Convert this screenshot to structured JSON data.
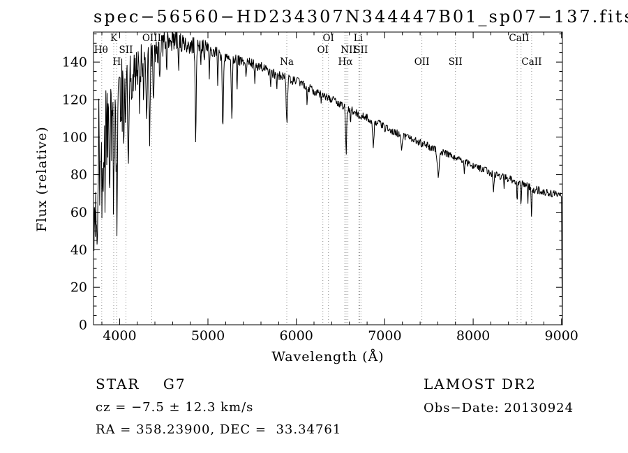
{
  "footer": {
    "class_line": "STAR    G7",
    "survey": "LAMOST DR2",
    "cz_line": "cz = −7.5 ± 12.3 km/s",
    "obs_line": "Obs−Date: 20130924",
    "radec_line": "RA = 358.23900, DEC =  33.34761"
  },
  "chart_data": {
    "type": "line",
    "title": "spec−56560−HD234307N344447B01_sp07−137.fits",
    "xlabel": "Wavelength (Å)",
    "ylabel": "Flux (relative)",
    "xlim": [
      3705,
      9010
    ],
    "ylim": [
      0,
      156
    ],
    "x_ticks": [
      4000,
      5000,
      6000,
      7000,
      8000,
      9000
    ],
    "y_ticks": [
      0,
      20,
      40,
      60,
      80,
      100,
      120,
      140
    ],
    "x_minor_step": 200,
    "y_minor_step": 5,
    "grid": false,
    "line_color": "#000000",
    "marker_line_color": "#8f8f8f",
    "line_markers": [
      3798,
      3934,
      3969,
      4072,
      4363,
      5892,
      6300,
      6363,
      6548,
      6563,
      6583,
      6707,
      6717,
      6731,
      7420,
      7800,
      8498,
      8542,
      8662
    ],
    "line_labels": [
      {
        "wavelength": 3934,
        "label": "K",
        "row": 0
      },
      {
        "wavelength": 4363,
        "label": "OIII",
        "row": 0
      },
      {
        "wavelength": 6363,
        "label": "OI",
        "row": 0
      },
      {
        "wavelength": 6700,
        "label": "Li",
        "row": 0
      },
      {
        "wavelength": 8520,
        "label": "CaII",
        "row": 0
      },
      {
        "wavelength": 3790,
        "label": "Hθ",
        "row": 1
      },
      {
        "wavelength": 4072,
        "label": "SII",
        "row": 1
      },
      {
        "wavelength": 6300,
        "label": "OI",
        "row": 1
      },
      {
        "wavelength": 6590,
        "label": "NII",
        "row": 1
      },
      {
        "wavelength": 6730,
        "label": "SII",
        "row": 1
      },
      {
        "wavelength": 3969,
        "label": "H",
        "row": 2
      },
      {
        "wavelength": 5892,
        "label": "Na",
        "row": 2
      },
      {
        "wavelength": 6555,
        "label": "Hα",
        "row": 2
      },
      {
        "wavelength": 7420,
        "label": "OII",
        "row": 2
      },
      {
        "wavelength": 7800,
        "label": "SII",
        "row": 2
      },
      {
        "wavelength": 8662,
        "label": "CaII",
        "row": 2
      }
    ],
    "continuum": [
      [
        3705,
        58
      ],
      [
        3720,
        72
      ],
      [
        3740,
        82
      ],
      [
        3760,
        88
      ],
      [
        3790,
        95
      ],
      [
        3820,
        100
      ],
      [
        3860,
        106
      ],
      [
        3900,
        111
      ],
      [
        3950,
        112
      ],
      [
        4000,
        120
      ],
      [
        4060,
        126
      ],
      [
        4120,
        130
      ],
      [
        4180,
        134
      ],
      [
        4240,
        138
      ],
      [
        4300,
        141
      ],
      [
        4360,
        144
      ],
      [
        4420,
        147
      ],
      [
        4480,
        149
      ],
      [
        4540,
        151
      ],
      [
        4600,
        152
      ],
      [
        4660,
        151
      ],
      [
        4720,
        150
      ],
      [
        4780,
        149
      ],
      [
        4840,
        149
      ],
      [
        4900,
        150
      ],
      [
        4960,
        148
      ],
      [
        5020,
        147
      ],
      [
        5080,
        146
      ],
      [
        5140,
        144
      ],
      [
        5200,
        143
      ],
      [
        5260,
        142
      ],
      [
        5320,
        141
      ],
      [
        5380,
        141
      ],
      [
        5440,
        140
      ],
      [
        5500,
        139
      ],
      [
        5560,
        138
      ],
      [
        5620,
        137
      ],
      [
        5680,
        135
      ],
      [
        5740,
        134
      ],
      [
        5800,
        133
      ],
      [
        5860,
        132
      ],
      [
        5920,
        131
      ],
      [
        5980,
        130
      ],
      [
        6040,
        129
      ],
      [
        6100,
        127
      ],
      [
        6160,
        126
      ],
      [
        6220,
        124
      ],
      [
        6280,
        123
      ],
      [
        6340,
        121
      ],
      [
        6400,
        120
      ],
      [
        6460,
        118
      ],
      [
        6520,
        117
      ],
      [
        6580,
        115
      ],
      [
        6640,
        114
      ],
      [
        6700,
        112
      ],
      [
        6760,
        111
      ],
      [
        6820,
        110
      ],
      [
        6880,
        108
      ],
      [
        6940,
        107
      ],
      [
        7000,
        105
      ],
      [
        7100,
        103
      ],
      [
        7200,
        101
      ],
      [
        7300,
        99
      ],
      [
        7400,
        97
      ],
      [
        7500,
        95
      ],
      [
        7600,
        93
      ],
      [
        7700,
        91
      ],
      [
        7800,
        89
      ],
      [
        7900,
        87
      ],
      [
        8000,
        85
      ],
      [
        8100,
        83
      ],
      [
        8200,
        81
      ],
      [
        8300,
        79
      ],
      [
        8400,
        78
      ],
      [
        8500,
        76
      ],
      [
        8600,
        74
      ],
      [
        8700,
        72
      ],
      [
        8800,
        71
      ],
      [
        8900,
        70
      ],
      [
        9010,
        68
      ]
    ],
    "absorption_features": [
      [
        3750,
        35,
        5
      ],
      [
        3798,
        32,
        5
      ],
      [
        3835,
        30,
        5
      ],
      [
        3889,
        32,
        5
      ],
      [
        3934,
        52,
        6
      ],
      [
        3969,
        46,
        6
      ],
      [
        4045,
        22,
        4
      ],
      [
        4102,
        44,
        6
      ],
      [
        4144,
        20,
        4
      ],
      [
        4227,
        24,
        4
      ],
      [
        4271,
        20,
        4
      ],
      [
        4305,
        30,
        7
      ],
      [
        4340,
        42,
        6
      ],
      [
        4383,
        26,
        5
      ],
      [
        4455,
        18,
        4
      ],
      [
        4531,
        16,
        4
      ],
      [
        4668,
        16,
        4
      ],
      [
        4861,
        50,
        6
      ],
      [
        4920,
        14,
        4
      ],
      [
        4957,
        12,
        3
      ],
      [
        5015,
        14,
        4
      ],
      [
        5110,
        18,
        4
      ],
      [
        5169,
        40,
        7
      ],
      [
        5270,
        34,
        6
      ],
      [
        5328,
        16,
        4
      ],
      [
        5430,
        10,
        3
      ],
      [
        5530,
        10,
        3
      ],
      [
        5710,
        8,
        3
      ],
      [
        5780,
        8,
        3
      ],
      [
        5892,
        24,
        7
      ],
      [
        6122,
        9,
        4
      ],
      [
        6280,
        7,
        3
      ],
      [
        6563,
        24,
        6
      ],
      [
        6613,
        7,
        3
      ],
      [
        6870,
        13,
        8
      ],
      [
        7190,
        7,
        6
      ],
      [
        7605,
        13,
        10
      ],
      [
        7900,
        5,
        4
      ],
      [
        8230,
        9,
        5
      ],
      [
        8350,
        5,
        4
      ],
      [
        8498,
        9,
        4
      ],
      [
        8542,
        12,
        4
      ],
      [
        8620,
        9,
        3
      ],
      [
        8662,
        15,
        4
      ]
    ],
    "noise_envelope": [
      [
        3705,
        38
      ],
      [
        3760,
        35
      ],
      [
        3820,
        32
      ],
      [
        3880,
        28
      ],
      [
        3940,
        26
      ],
      [
        4000,
        22
      ],
      [
        4080,
        18
      ],
      [
        4160,
        14
      ],
      [
        4240,
        12
      ],
      [
        4320,
        10
      ],
      [
        4400,
        9
      ],
      [
        4500,
        7
      ],
      [
        4600,
        6
      ],
      [
        4800,
        5
      ],
      [
        5000,
        4
      ],
      [
        5300,
        3.2
      ],
      [
        5600,
        2.8
      ],
      [
        6000,
        2.5
      ],
      [
        6500,
        2.2
      ],
      [
        7000,
        2.2
      ],
      [
        7500,
        2
      ],
      [
        8000,
        2
      ],
      [
        8500,
        2.2
      ],
      [
        9010,
        2.2
      ]
    ],
    "edge_drop": {
      "start": 9000,
      "end": 9008
    }
  }
}
